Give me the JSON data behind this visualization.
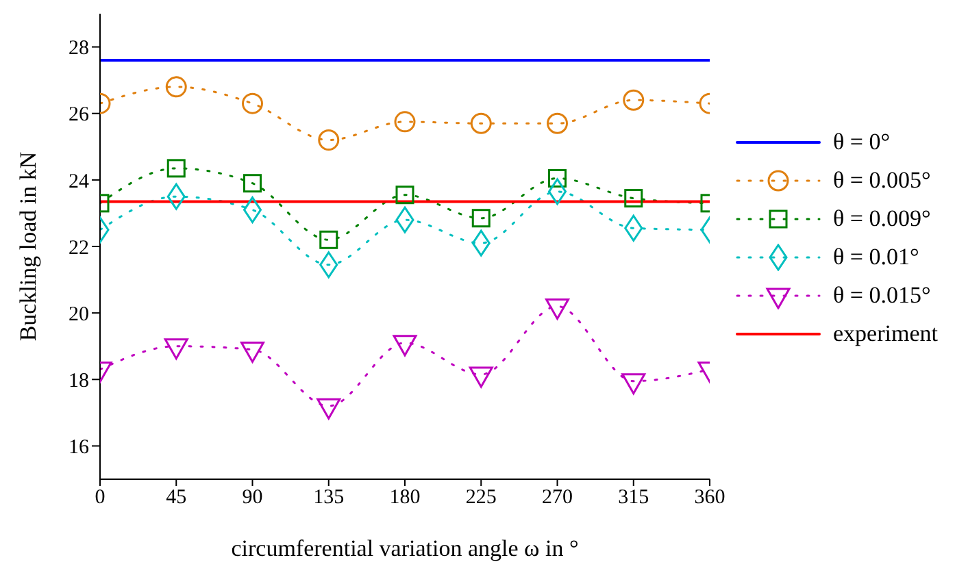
{
  "chart_data": {
    "type": "line",
    "xlabel": "circumferential variation angle ω in °",
    "ylabel": "Buckling load in kN",
    "xlim": [
      0,
      360
    ],
    "xticks": [
      0,
      45,
      90,
      135,
      180,
      225,
      270,
      315,
      360
    ],
    "ylim": [
      15,
      29
    ],
    "yticks": [
      16,
      18,
      20,
      22,
      24,
      26,
      28
    ],
    "legend": "right",
    "series": [
      {
        "name": "θ = 0°",
        "color": "#0000ff",
        "x": [
          0,
          360
        ],
        "values": [
          27.6,
          27.6
        ],
        "marker": "none",
        "line_style": "solid"
      },
      {
        "name": "θ = 0.005°",
        "color": "#e08010",
        "x": [
          0,
          45,
          90,
          135,
          180,
          225,
          270,
          315,
          360
        ],
        "values": [
          26.3,
          26.8,
          26.3,
          25.2,
          25.75,
          25.7,
          25.7,
          26.4,
          26.3
        ],
        "marker": "circle",
        "line_style": "dotted"
      },
      {
        "name": "θ = 0.009°",
        "color": "#008000",
        "x": [
          0,
          45,
          90,
          135,
          180,
          225,
          270,
          315,
          360
        ],
        "values": [
          23.3,
          24.35,
          23.9,
          22.2,
          23.55,
          22.85,
          24.05,
          23.45,
          23.3
        ],
        "marker": "square",
        "line_style": "dotted"
      },
      {
        "name": "θ = 0.01°",
        "color": "#00bfbf",
        "x": [
          0,
          45,
          90,
          135,
          180,
          225,
          270,
          315,
          360
        ],
        "values": [
          22.5,
          23.5,
          23.1,
          21.45,
          22.8,
          22.1,
          23.65,
          22.55,
          22.5
        ],
        "marker": "diamond",
        "line_style": "dotted"
      },
      {
        "name": "θ = 0.015°",
        "color": "#bf00bf",
        "x": [
          0,
          45,
          90,
          135,
          180,
          225,
          270,
          315,
          360
        ],
        "values": [
          18.3,
          19.0,
          18.9,
          17.2,
          19.1,
          18.15,
          20.2,
          17.95,
          18.3
        ],
        "marker": "triangle",
        "line_style": "dotted"
      },
      {
        "name": "experiment",
        "color": "#ff0000",
        "x": [
          0,
          360
        ],
        "values": [
          23.35,
          23.35
        ],
        "marker": "none",
        "line_style": "solid"
      }
    ]
  }
}
